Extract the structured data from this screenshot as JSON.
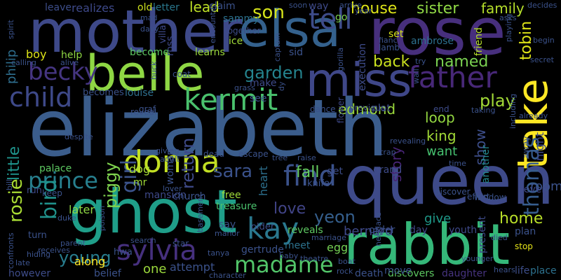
{
  "words": [
    {
      "text": "elizabeth",
      "color": "#3b5d8c"
    },
    {
      "text": "queen",
      "color": "#3e4a89"
    },
    {
      "text": "rose",
      "color": "#472f7d"
    },
    {
      "text": "mother",
      "color": "#3e4989"
    },
    {
      "text": "ghost",
      "color": "#1f9e89"
    },
    {
      "text": "rabbit",
      "color": "#35b779"
    },
    {
      "text": "elsa",
      "color": "#34618d"
    },
    {
      "text": "belle",
      "color": "#8fd744"
    },
    {
      "text": "miss",
      "color": "#3f4788"
    },
    {
      "text": "take",
      "color": "#fde725"
    },
    {
      "text": "father",
      "color": "#482878"
    },
    {
      "text": "kermit",
      "color": "#4ac16d"
    },
    {
      "text": "donna",
      "color": "#c2df23"
    },
    {
      "text": "prince",
      "color": "#277f8e"
    },
    {
      "text": "sylvia",
      "color": "#46307e"
    },
    {
      "text": "find",
      "color": "#3b528b"
    },
    {
      "text": "kay",
      "color": "#2a788e"
    },
    {
      "text": "madame",
      "color": "#52c569"
    },
    {
      "text": "tell",
      "color": "#3e4c8a"
    },
    {
      "text": "child",
      "color": "#3e4989"
    },
    {
      "text": "becky",
      "color": "#453581"
    },
    {
      "text": "house",
      "color": "#dde318"
    },
    {
      "text": "sister",
      "color": "#8fd744"
    },
    {
      "text": "family",
      "color": "#b5de2b"
    },
    {
      "text": "son",
      "color": "#d5e21a"
    },
    {
      "text": "lead",
      "color": "#bddf26"
    },
    {
      "text": "back",
      "color": "#cae11f"
    },
    {
      "text": "named",
      "color": "#7ad151"
    },
    {
      "text": "garden",
      "color": "#25848e"
    },
    {
      "text": "play",
      "color": "#a2da37"
    },
    {
      "text": "edmond",
      "color": "#9bd93c"
    },
    {
      "text": "sara",
      "color": "#3b528b"
    },
    {
      "text": "home",
      "color": "#b8de29"
    },
    {
      "text": "thomas",
      "color": "#365d8d"
    },
    {
      "text": "yeon",
      "color": "#355f8d"
    },
    {
      "text": "bird",
      "color": "#20928c"
    },
    {
      "text": "rosie",
      "color": "#a8db34"
    },
    {
      "text": "love",
      "color": "#414487"
    },
    {
      "text": "fall",
      "color": "#65cb5e"
    },
    {
      "text": "young",
      "color": "#287d8e"
    },
    {
      "text": "return",
      "color": "#3e4a89"
    },
    {
      "text": "girl",
      "color": "#3b528b"
    },
    {
      "text": "piggy",
      "color": "#7fd34e"
    },
    {
      "text": "loop",
      "color": "#93d741"
    },
    {
      "text": "king",
      "color": "#a2da37"
    },
    {
      "text": "story",
      "color": "#482475"
    },
    {
      "text": "want",
      "color": "#46c06f"
    },
    {
      "text": "show",
      "color": "#3d4e8a"
    },
    {
      "text": "tobin",
      "color": "#dde318"
    },
    {
      "text": "philip",
      "color": "#2e6e8e"
    },
    {
      "text": "little",
      "color": "#1f948c"
    },
    {
      "text": "give",
      "color": "#1f9a8a"
    },
    {
      "text": "bernard",
      "color": "#3e4989"
    },
    {
      "text": "room",
      "color": "#3b528b"
    },
    {
      "text": "another",
      "color": "#23898e"
    },
    {
      "text": "one",
      "color": "#9bd93c"
    },
    {
      "text": "attempt",
      "color": "#3b528b"
    },
    {
      "text": "later",
      "color": "#8fd744"
    },
    {
      "text": "treasure",
      "color": "#4ac16d"
    },
    {
      "text": "heart",
      "color": "#2d708e"
    },
    {
      "text": "dog",
      "color": "#a8db34"
    },
    {
      "text": "palace",
      "color": "#5ec962"
    },
    {
      "text": "egg",
      "color": "#75d054"
    },
    {
      "text": "meet",
      "color": "#2c728e"
    },
    {
      "text": "reveals",
      "color": "#5ec962"
    },
    {
      "text": "order",
      "color": "#3b528b"
    },
    {
      "text": "day",
      "color": "#3f4788"
    },
    {
      "text": "along",
      "color": "#fde725"
    },
    {
      "text": "belief",
      "color": "#3b528b"
    },
    {
      "text": "however",
      "color": "#3e4c8a"
    },
    {
      "text": "discovers",
      "color": "#5ec962"
    },
    {
      "text": "daughter",
      "color": "#46337f"
    },
    {
      "text": "place",
      "color": "#2c718e"
    },
    {
      "text": "life",
      "color": "#3d4e8a"
    },
    {
      "text": "boy",
      "color": "#dde318"
    },
    {
      "text": "help",
      "color": "#8fd744"
    },
    {
      "text": "become",
      "color": "#5ec962"
    },
    {
      "text": "becomes",
      "color": "#3b528b"
    },
    {
      "text": "louise",
      "color": "#2e6f8e"
    },
    {
      "text": "realizes",
      "color": "#3e4989"
    },
    {
      "text": "old",
      "color": "#cde11d"
    },
    {
      "text": "letter",
      "color": "#2a788e"
    },
    {
      "text": "leave",
      "color": "#3d4e8a"
    },
    {
      "text": "claim",
      "color": "#3b528b"
    },
    {
      "text": "sammy",
      "color": "#2c728e"
    },
    {
      "text": "together",
      "color": "#3d4d8a"
    },
    {
      "text": "ice",
      "color": "#a0da39"
    },
    {
      "text": "learns",
      "color": "#9bd93c"
    },
    {
      "text": "make",
      "color": "#3e4a89"
    },
    {
      "text": "see",
      "color": "#3b528b"
    },
    {
      "text": "plot",
      "color": "#3e4c8a"
    },
    {
      "text": "dance",
      "color": "#3b528b"
    },
    {
      "text": "ambrose",
      "color": "#2d708e"
    },
    {
      "text": "friend",
      "color": "#b5de2b"
    },
    {
      "text": "set",
      "color": "#d5e21a"
    },
    {
      "text": "lamb",
      "color": "#3b528b"
    },
    {
      "text": "execution",
      "color": "#3e4c8a"
    },
    {
      "text": "go",
      "color": "#7ad151"
    },
    {
      "text": "way",
      "color": "#3e4a89"
    },
    {
      "text": "sid",
      "color": "#3b528b"
    },
    {
      "text": "mr",
      "color": "#a0da39"
    },
    {
      "text": "woman",
      "color": "#3b528b"
    },
    {
      "text": "free",
      "color": "#9fda3a"
    },
    {
      "text": "mansion",
      "color": "#3e4989"
    },
    {
      "text": "church",
      "color": "#3b528b"
    },
    {
      "text": "say",
      "color": "#3b528b"
    },
    {
      "text": "older",
      "color": "#3d4e8a"
    },
    {
      "text": "run",
      "color": "#3e4989"
    },
    {
      "text": "turn",
      "color": "#3b528b"
    },
    {
      "text": "plan",
      "color": "#3b528b"
    },
    {
      "text": "youth",
      "color": "#3e4989"
    },
    {
      "text": "end",
      "color": "#3e4c8a"
    },
    {
      "text": "knife",
      "color": "#3b528b"
    },
    {
      "text": "get",
      "color": "#3d4e8a"
    },
    {
      "text": "grand",
      "color": "#3e4c8a"
    },
    {
      "text": "present",
      "color": "#3e4c8a"
    },
    {
      "text": "previous",
      "color": "#3e4c8a"
    },
    {
      "text": "death",
      "color": "#3b528b"
    },
    {
      "text": "move",
      "color": "#3b528b"
    },
    {
      "text": "gertrude",
      "color": "#3b528b"
    },
    {
      "text": "coat",
      "color": "#3b528b"
    },
    {
      "text": "graf",
      "color": "#3b528b"
    },
    {
      "text": "reveal",
      "color": "#3b528b"
    },
    {
      "text": "villa",
      "color": "#3e4989"
    },
    {
      "text": "ross",
      "color": "#3e4989"
    },
    {
      "text": "hwa",
      "color": "#3b528b"
    },
    {
      "text": "flower",
      "color": "#3e4989"
    },
    {
      "text": "keep",
      "color": "#3b528b"
    },
    {
      "text": "star",
      "color": "#3b528b"
    },
    {
      "text": "stop",
      "color": "#e5e419"
    },
    {
      "text": "never",
      "color": "#3e4989"
    },
    {
      "text": "effort",
      "color": "#3b528b"
    },
    {
      "text": "window",
      "color": "#3b528b"
    },
    {
      "text": "discover",
      "color": "#3b528b"
    },
    {
      "text": "away",
      "color": "#3b528b"
    },
    {
      "text": "night",
      "color": "#3e4989"
    },
    {
      "text": "taking",
      "color": "#3b528b"
    },
    {
      "text": "already",
      "color": "#3b528b"
    },
    {
      "text": "hears",
      "color": "#3b528b"
    },
    {
      "text": "grass",
      "color": "#3b528b"
    },
    {
      "text": "gorilla",
      "color": "#3b528b"
    },
    {
      "text": "captain",
      "color": "#3b528b"
    },
    {
      "text": "encounter",
      "color": "#3b528b"
    },
    {
      "text": "spirit",
      "color": "#3b528b"
    },
    {
      "text": "alive",
      "color": "#3b528b"
    },
    {
      "text": "calling",
      "color": "#3b528b"
    },
    {
      "text": "buck",
      "color": "#3b528b"
    },
    {
      "text": "mad",
      "color": "#3b528b"
    },
    {
      "text": "davy",
      "color": "#3b528b"
    },
    {
      "text": "search",
      "color": "#3b528b"
    },
    {
      "text": "manor",
      "color": "#3b528b"
    },
    {
      "text": "parent",
      "color": "#3b528b"
    },
    {
      "text": "receives",
      "color": "#3b528b"
    },
    {
      "text": "despite",
      "color": "#3b528b"
    },
    {
      "text": "giving",
      "color": "#3b528b"
    },
    {
      "text": "adult",
      "color": "#3b528b"
    },
    {
      "text": "escape",
      "color": "#3b528b"
    },
    {
      "text": "dead",
      "color": "#3b528b"
    },
    {
      "text": "tree",
      "color": "#3b528b"
    },
    {
      "text": "raise",
      "color": "#3b528b"
    },
    {
      "text": "trap",
      "color": "#3b528b"
    },
    {
      "text": "theatre",
      "color": "#3b528b"
    },
    {
      "text": "baby",
      "color": "#3b528b"
    },
    {
      "text": "marriage",
      "color": "#3b528b"
    },
    {
      "text": "necklace",
      "color": "#3b528b"
    },
    {
      "text": "rock",
      "color": "#3b528b"
    },
    {
      "text": "boat",
      "color": "#3b528b"
    },
    {
      "text": "character",
      "color": "#3b528b"
    },
    {
      "text": "hiding",
      "color": "#3b528b"
    },
    {
      "text": "late",
      "color": "#3b528b"
    },
    {
      "text": "confronts",
      "color": "#3b528b"
    },
    {
      "text": "duke",
      "color": "#3b528b"
    },
    {
      "text": "poison",
      "color": "#3b528b"
    },
    {
      "text": "basement",
      "color": "#3b528b"
    },
    {
      "text": "tanya",
      "color": "#3b528b"
    },
    {
      "text": "lover",
      "color": "#3b528b"
    },
    {
      "text": "bill",
      "color": "#3b528b"
    },
    {
      "text": "revealing",
      "color": "#3b528b"
    },
    {
      "text": "time",
      "color": "#3b528b"
    },
    {
      "text": "including",
      "color": "#3b528b"
    },
    {
      "text": "younger",
      "color": "#3b528b"
    },
    {
      "text": "died",
      "color": "#3b528b"
    },
    {
      "text": "soon",
      "color": "#3b528b"
    },
    {
      "text": "arrive",
      "color": "#3b528b"
    },
    {
      "text": "year",
      "color": "#3b528b"
    },
    {
      "text": "asks",
      "color": "#3b528b"
    },
    {
      "text": "decides",
      "color": "#3b528b"
    },
    {
      "text": "begin",
      "color": "#3b528b"
    },
    {
      "text": "secret",
      "color": "#3b528b"
    },
    {
      "text": "playing",
      "color": "#3b528b"
    },
    {
      "text": "fianc",
      "color": "#3b528b"
    },
    {
      "text": "try",
      "color": "#3b528b"
    },
    {
      "text": "wall",
      "color": "#3b528b"
    },
    {
      "text": "dy",
      "color": "#3b528b"
    }
  ]
}
